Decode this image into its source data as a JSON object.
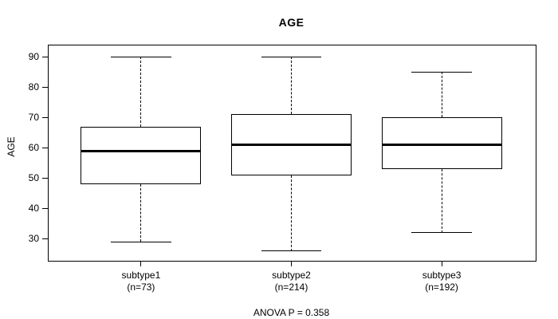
{
  "chart_data": {
    "type": "boxplot",
    "title": "AGE",
    "ylabel": "AGE",
    "xlabel": "",
    "annotation": "ANOVA P = 0.358",
    "ylim": [
      23,
      94
    ],
    "yticks": [
      30,
      40,
      50,
      60,
      70,
      80,
      90
    ],
    "grid": false,
    "legend": false,
    "line_color": "#000000",
    "background_color": "#ffffff",
    "groups": [
      {
        "label": "subtype1",
        "n_label": "(n=73)",
        "n": 73,
        "whisker_low": 29,
        "q1": 48,
        "median": 59,
        "q3": 67,
        "whisker_high": 90
      },
      {
        "label": "subtype2",
        "n_label": "(n=214)",
        "n": 214,
        "whisker_low": 26,
        "q1": 51,
        "median": 61,
        "q3": 71,
        "whisker_high": 90
      },
      {
        "label": "subtype3",
        "n_label": "(n=192)",
        "n": 192,
        "whisker_low": 32,
        "q1": 53,
        "median": 61,
        "q3": 70,
        "whisker_high": 85
      }
    ]
  }
}
